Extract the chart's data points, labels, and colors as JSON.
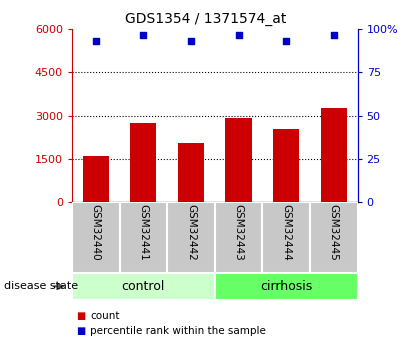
{
  "title": "GDS1354 / 1371574_at",
  "samples": [
    "GSM32440",
    "GSM32441",
    "GSM32442",
    "GSM32443",
    "GSM32444",
    "GSM32445"
  ],
  "counts": [
    1600,
    2750,
    2050,
    2900,
    2550,
    3250
  ],
  "percentile_ranks": [
    93,
    97,
    93,
    97,
    93,
    97
  ],
  "bar_color": "#CC0000",
  "dot_color": "#0000CC",
  "ylim_left": [
    0,
    6000
  ],
  "ylim_right": [
    0,
    100
  ],
  "yticks_left": [
    0,
    1500,
    3000,
    4500,
    6000
  ],
  "yticks_right": [
    0,
    25,
    50,
    75,
    100
  ],
  "ytick_labels_left": [
    "0",
    "1500",
    "3000",
    "4500",
    "6000"
  ],
  "ytick_labels_right": [
    "0",
    "25",
    "50",
    "75",
    "100%"
  ],
  "left_tick_color": "#CC0000",
  "right_tick_color": "#0000CC",
  "grid_levels": [
    1500,
    3000,
    4500
  ],
  "sample_box_color": "#C8C8C8",
  "control_color": "#CCFFCC",
  "cirrhosis_color": "#66FF66",
  "legend_items": [
    {
      "label": "count",
      "color": "#CC0000"
    },
    {
      "label": "percentile rank within the sample",
      "color": "#0000CC"
    }
  ],
  "disease_state_label": "disease state",
  "title_fontsize": 10,
  "tick_fontsize": 8,
  "bar_width": 0.55
}
